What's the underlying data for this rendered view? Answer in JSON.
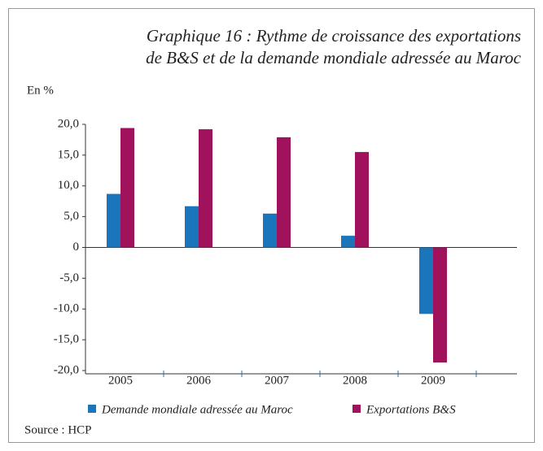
{
  "chart_data": {
    "type": "bar",
    "title": [
      "Graphique 16 : Rythme de croissance des exportations",
      "de B&S et de la demande mondiale adressée au Maroc"
    ],
    "y_label": "En %",
    "source": "Source : HCP",
    "categories": [
      "2005",
      "2006",
      "2007",
      "2008",
      "2009"
    ],
    "series": [
      {
        "name": "Demande mondiale adressée au Maroc",
        "color": "#1a75bb",
        "values": [
          8.7,
          6.7,
          5.5,
          1.9,
          -10.8
        ]
      },
      {
        "name": "Exportations B&S",
        "color": "#a0125b",
        "values": [
          19.4,
          19.2,
          17.9,
          15.5,
          -18.7
        ]
      }
    ],
    "ylim": [
      -20,
      20
    ],
    "yticks": [
      {
        "value": -20,
        "label": "-20,0"
      },
      {
        "value": -15,
        "label": "-15,0"
      },
      {
        "value": -10,
        "label": "-10,0"
      },
      {
        "value": -5,
        "label": "-5,0"
      },
      0,
      {
        "value": 5,
        "label": "5,0"
      },
      {
        "value": 10,
        "label": "10,0"
      },
      {
        "value": 15,
        "label": "15,0"
      },
      {
        "value": 20,
        "label": "20,0"
      }
    ]
  }
}
